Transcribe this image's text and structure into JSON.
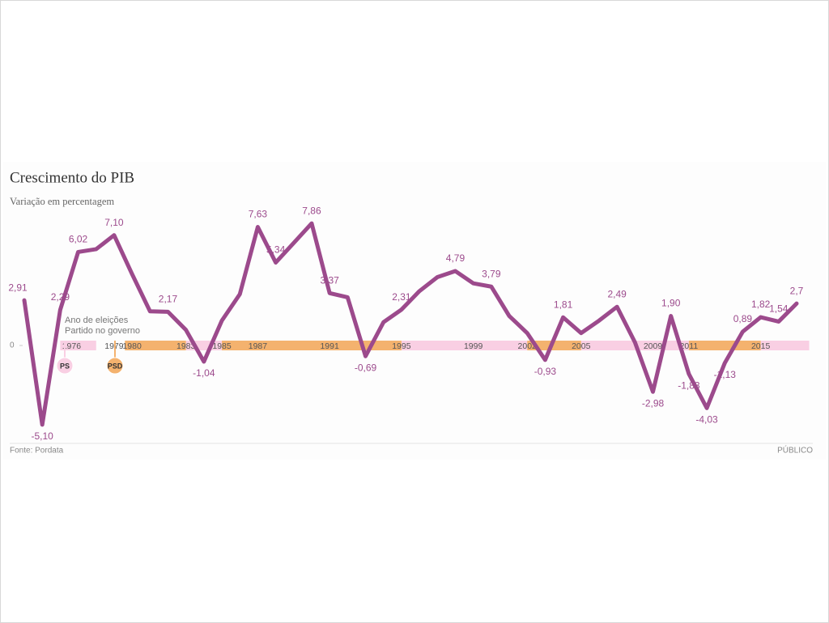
{
  "chart_data": {
    "type": "line",
    "title": "Crescimento do PIB",
    "subtitle": "Variação em percentagem",
    "x": [
      1974,
      1975,
      1976,
      1977,
      1978,
      1979,
      1980,
      1981,
      1982,
      1983,
      1984,
      1985,
      1986,
      1987,
      1988,
      1989,
      1990,
      1991,
      1992,
      1993,
      1994,
      1995,
      1996,
      1997,
      1998,
      1999,
      2000,
      2001,
      2002,
      2003,
      2004,
      2005,
      2006,
      2007,
      2008,
      2009,
      2010,
      2011,
      2012,
      2013,
      2014,
      2015,
      2016,
      2017
    ],
    "xticks": [
      1976,
      1979,
      1980,
      1983,
      1985,
      1987,
      1991,
      1995,
      1999,
      2002,
      2005,
      2009,
      2011,
      2015
    ],
    "ylim": [
      -6,
      8.5
    ],
    "yticks": [
      0
    ],
    "series": [
      {
        "color": "#9c4a8c",
        "values": [
          2.91,
          -5.1,
          2.29,
          6.02,
          6.2,
          7.1,
          4.6,
          2.2,
          2.17,
          1.0,
          -1.04,
          1.6,
          3.3,
          7.63,
          5.34,
          6.6,
          7.86,
          3.37,
          3.1,
          -0.69,
          1.5,
          2.31,
          3.5,
          4.4,
          4.79,
          4.0,
          3.79,
          1.9,
          0.8,
          -0.93,
          1.81,
          0.8,
          1.6,
          2.49,
          0.2,
          -2.98,
          1.9,
          -1.83,
          -4.03,
          -1.13,
          0.89,
          1.82,
          1.54,
          2.7
        ],
        "value_labels": [
          "2,91",
          "-5,10",
          "2,29",
          "6,02",
          null,
          "7,10",
          null,
          null,
          "2,17",
          null,
          "-1,04",
          null,
          null,
          "7,63",
          "5,34",
          null,
          "7,86",
          "3,37",
          null,
          "-0,69",
          null,
          "2,31",
          null,
          null,
          "4,79",
          null,
          "3,79",
          null,
          null,
          "-0,93",
          "1,81",
          null,
          null,
          "2,49",
          null,
          "-2,98",
          "1,90",
          "-1,83",
          "-4,03",
          "-1,13",
          "0,89",
          "1,82",
          "1,54",
          "2,7"
        ]
      }
    ],
    "legend": {
      "title": "Ano de eleições",
      "subtitle": "Partido no governo",
      "parties": [
        {
          "name": "PS",
          "color": "#f9cfe3",
          "periods": [
            [
              1976,
              1978
            ],
            [
              1983,
              1985
            ],
            [
              1995,
              2002
            ],
            [
              2005,
              2011
            ],
            [
              2015,
              2017.7
            ]
          ]
        },
        {
          "name": "PSD",
          "color": "#f4b26e",
          "periods": [
            [
              1979.6,
              1983
            ],
            [
              1985,
              1995
            ],
            [
              2002,
              2005
            ],
            [
              2011,
              2015
            ]
          ]
        }
      ]
    },
    "source": "Fonte: Pordata",
    "credit": "PÚBLICO"
  }
}
